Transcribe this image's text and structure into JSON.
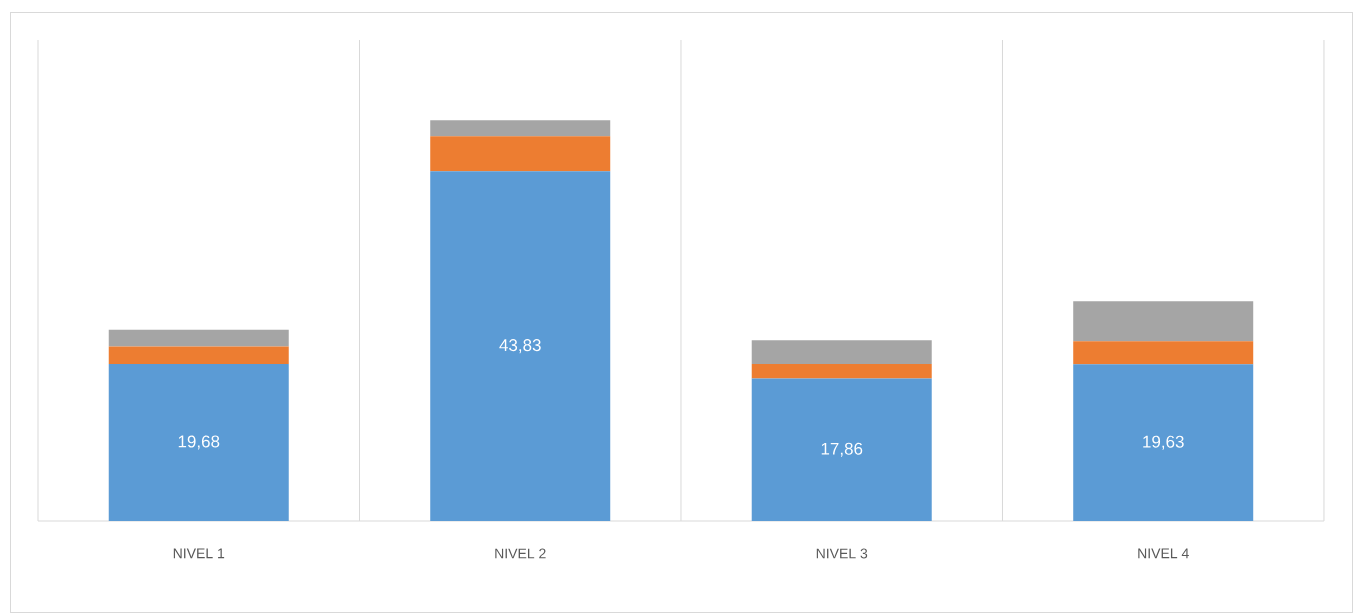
{
  "chart_data": {
    "type": "bar",
    "stacked": true,
    "categories": [
      "NIVEL 1",
      "NIVEL 2",
      "NIVEL 3",
      "NIVEL 4"
    ],
    "grid": "x",
    "series": [
      {
        "color": "#5b9bd5",
        "values": [
          19.68,
          43.83,
          17.86,
          19.63
        ],
        "value_labels": [
          "19,68",
          "43,83",
          "17,86",
          "19,63"
        ]
      },
      {
        "color": "#ed7d31",
        "values": [
          2.2,
          4.4,
          1.8,
          2.9
        ]
      },
      {
        "color": "#a5a5a5",
        "values": [
          2.1,
          2.0,
          3.0,
          5.0
        ]
      }
    ]
  }
}
